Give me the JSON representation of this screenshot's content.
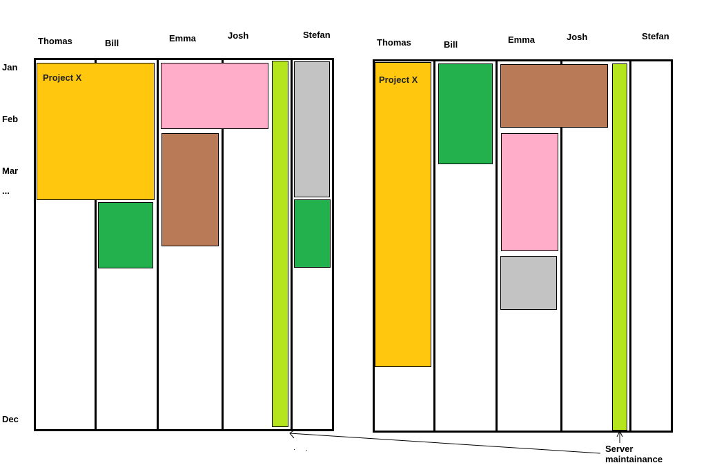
{
  "colors": {
    "project_x": "#ffc70d",
    "pink": "#ffadc9",
    "brown": "#b97a57",
    "green": "#22b14c",
    "lime": "#b5e61d",
    "gray": "#c3c3c3",
    "line": "#000000"
  },
  "months": {
    "jan": "Jan",
    "feb": "Feb",
    "mar": "Mar",
    "more": "...",
    "dec": "Dec"
  },
  "left": {
    "people": [
      "Thomas",
      "Bill",
      "Emma",
      "Josh",
      "Stefan"
    ],
    "project_x_label": "Project X"
  },
  "right": {
    "people": [
      "Thomas",
      "Bill",
      "Emma",
      "Josh",
      "Stefan"
    ],
    "project_x_label": "Project X"
  },
  "annotation": {
    "line1": "Server",
    "line2": "maintainance"
  }
}
